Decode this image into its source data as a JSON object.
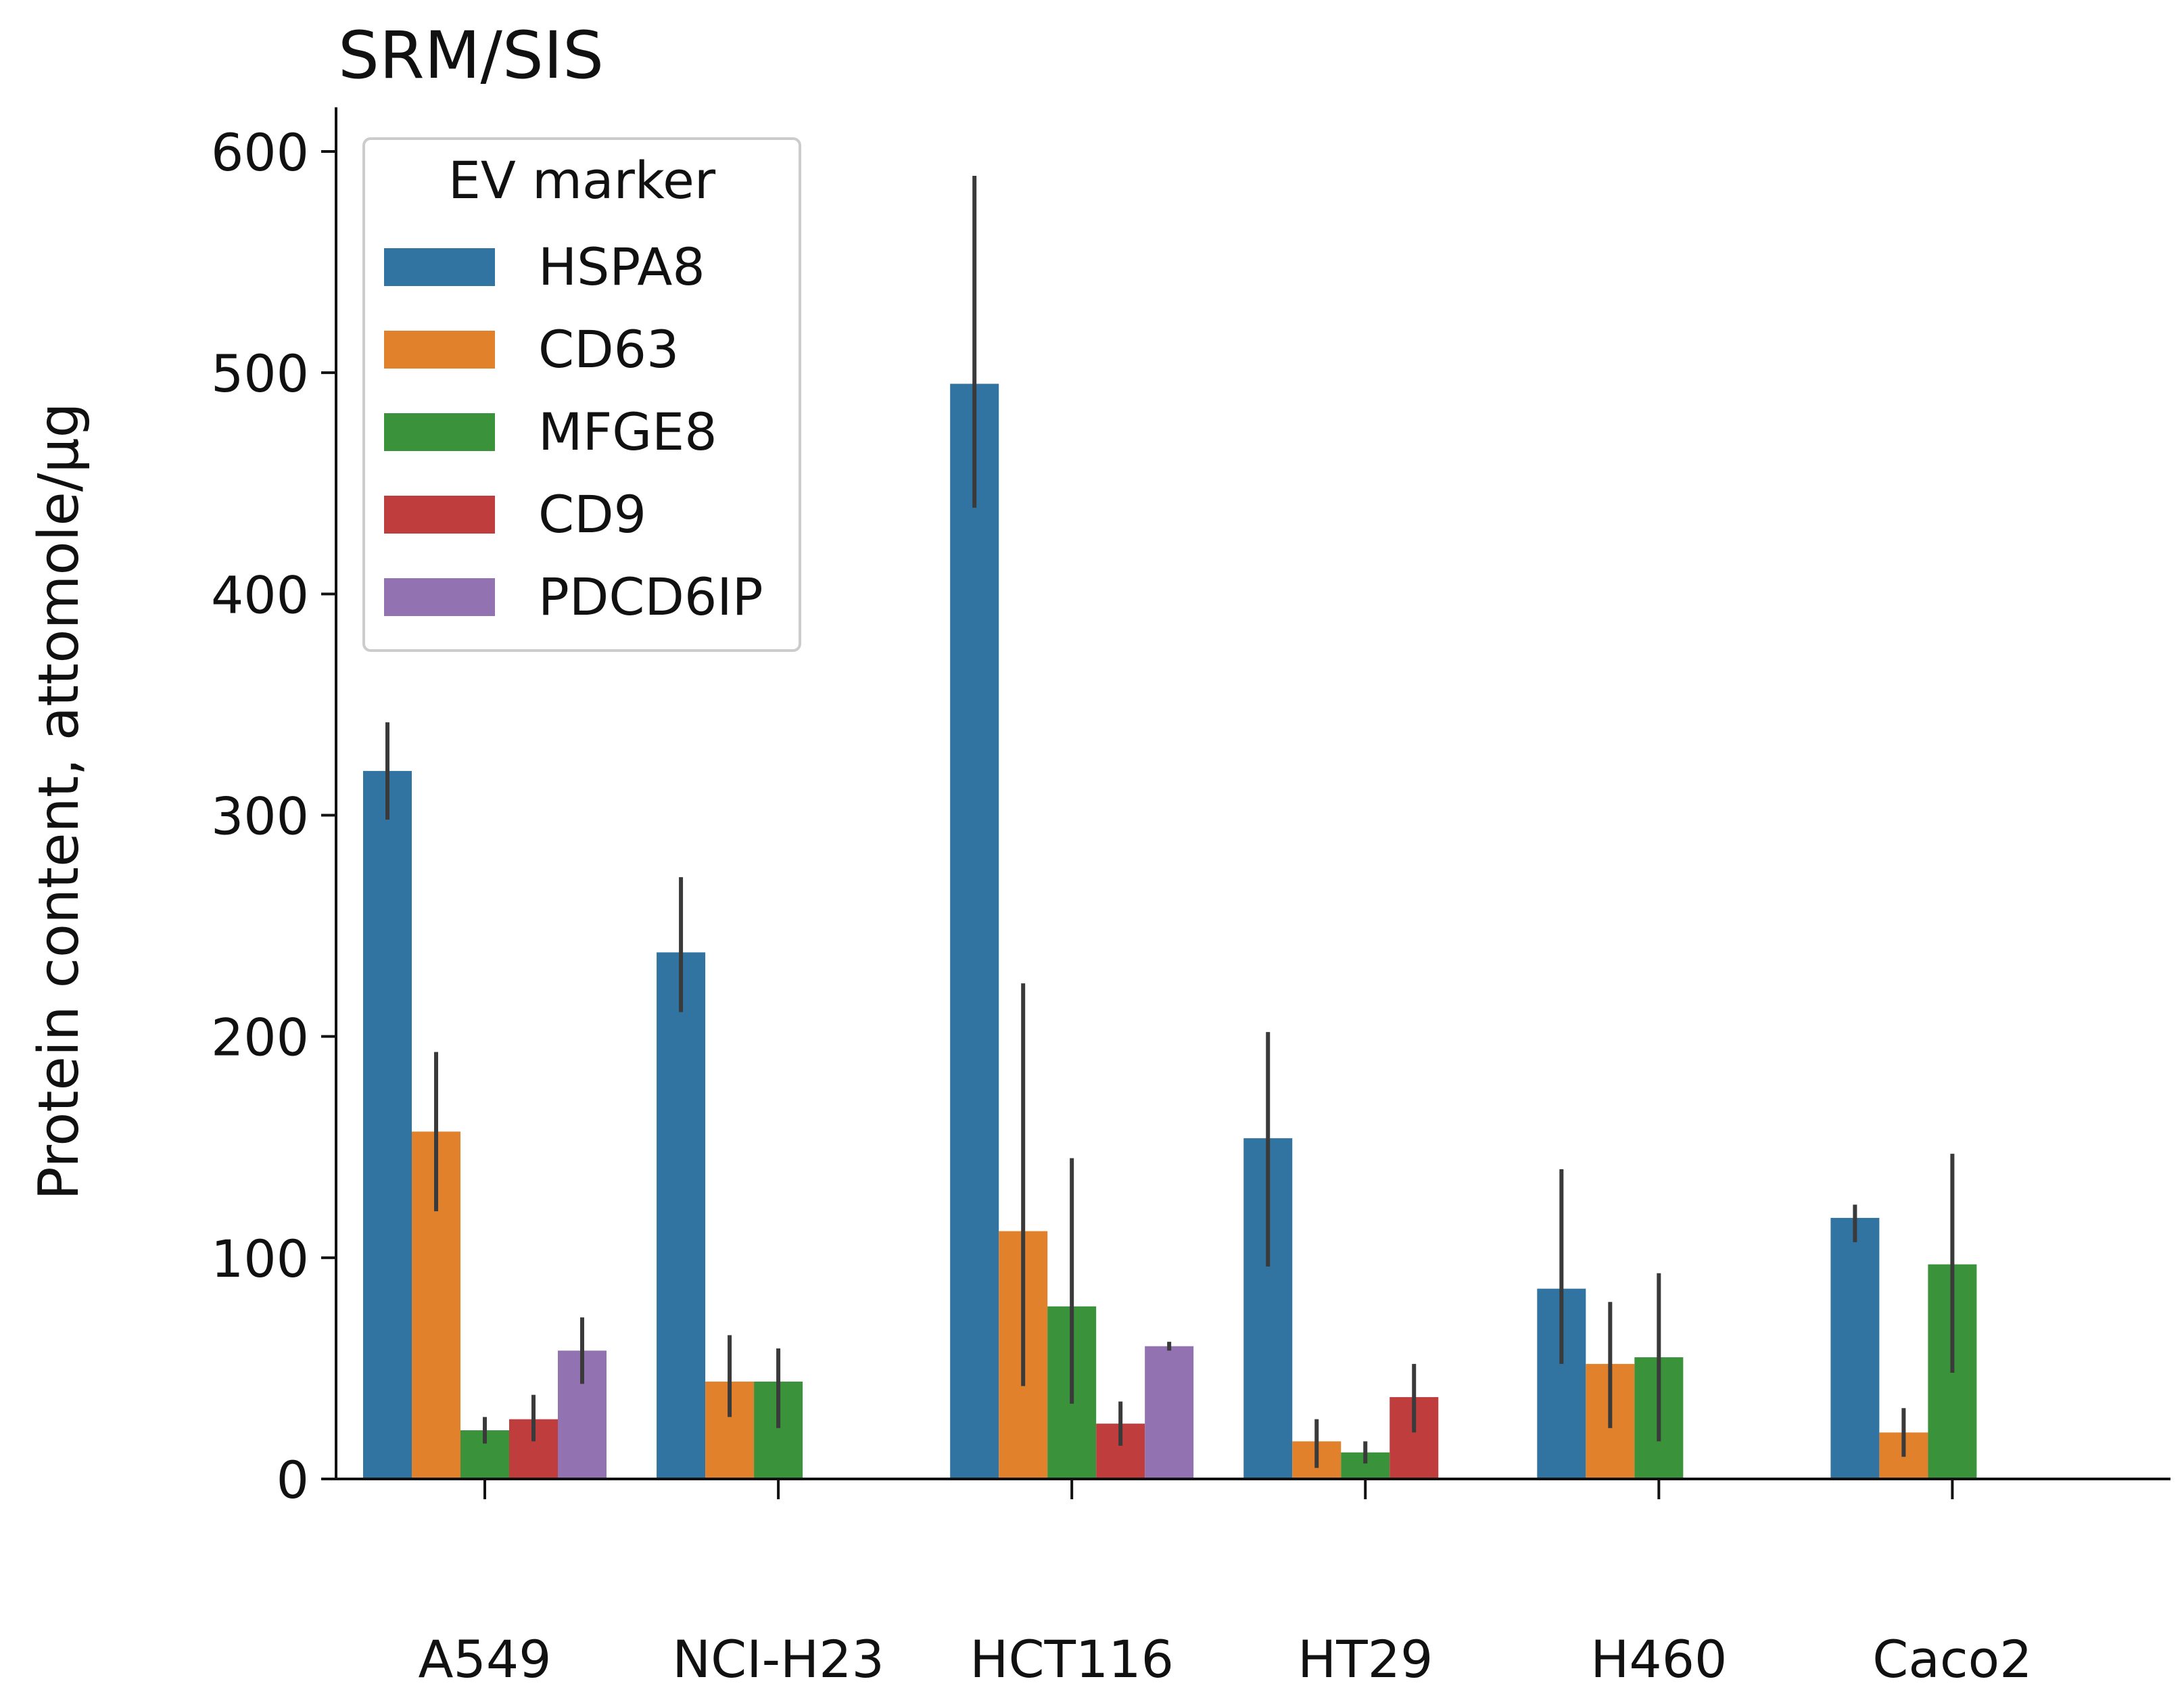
{
  "chart_data": {
    "type": "bar",
    "title": "SRM/SIS",
    "xlabel": "",
    "ylabel": "Protein content, attomole/µg",
    "ylim": [
      0,
      620
    ],
    "yticks": [
      0,
      100,
      200,
      300,
      400,
      500,
      600
    ],
    "categories": [
      "A549",
      "NCI-H23",
      "HCT116",
      "HT29",
      "H460",
      "Caco2"
    ],
    "legend": {
      "title": "EV marker",
      "placement": "top-left"
    },
    "grid": false,
    "series": [
      {
        "name": "HSPA8",
        "color": "#3274a1",
        "values": [
          320,
          238,
          495,
          154,
          86,
          118
        ],
        "err_low": [
          298,
          211,
          439,
          96,
          52,
          107
        ],
        "err_high": [
          342,
          272,
          589,
          202,
          140,
          124
        ]
      },
      {
        "name": "CD63",
        "color": "#e1812c",
        "values": [
          157,
          44,
          112,
          17,
          52,
          21
        ],
        "err_low": [
          121,
          28,
          42,
          5,
          23,
          10
        ],
        "err_high": [
          193,
          65,
          224,
          27,
          80,
          32
        ]
      },
      {
        "name": "MFGE8",
        "color": "#3a923a",
        "values": [
          22,
          44,
          78,
          12,
          55,
          97
        ],
        "err_low": [
          16,
          23,
          34,
          7,
          17,
          48
        ],
        "err_high": [
          28,
          59,
          145,
          17,
          93,
          147
        ]
      },
      {
        "name": "CD9",
        "color": "#c03d3e",
        "values": [
          27,
          null,
          25,
          37,
          null,
          null
        ],
        "err_low": [
          17,
          null,
          15,
          21,
          null,
          null
        ],
        "err_high": [
          38,
          null,
          35,
          52,
          null,
          null
        ]
      },
      {
        "name": "PDCD6IP",
        "color": "#9372b2",
        "values": [
          58,
          null,
          60,
          null,
          null,
          null
        ],
        "err_low": [
          43,
          null,
          58,
          null,
          null,
          null
        ],
        "err_high": [
          73,
          null,
          62,
          null,
          null,
          null
        ]
      }
    ]
  }
}
